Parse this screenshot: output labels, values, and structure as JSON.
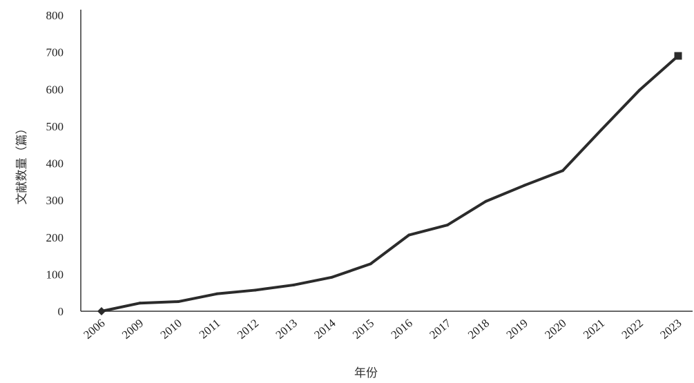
{
  "chart_data": {
    "type": "line",
    "categories": [
      "2006",
      "2009",
      "2010",
      "2011",
      "2012",
      "2013",
      "2014",
      "2015",
      "2016",
      "2017",
      "2018",
      "2019",
      "2020",
      "2021",
      "2022",
      "2023"
    ],
    "values": [
      0,
      22,
      26,
      47,
      57,
      71,
      92,
      128,
      206,
      233,
      297,
      340,
      380,
      490,
      598,
      690
    ],
    "title": "",
    "xlabel": "年份",
    "ylabel": "文献数量（篇）",
    "ylim": [
      0,
      800
    ],
    "yticks": [
      "0",
      "100",
      "200",
      "300",
      "400",
      "500",
      "600",
      "700",
      "800"
    ],
    "grid": false,
    "legend": "none",
    "line_color": "#2b2b2b",
    "start_marker": "diamond",
    "end_marker": "square"
  }
}
